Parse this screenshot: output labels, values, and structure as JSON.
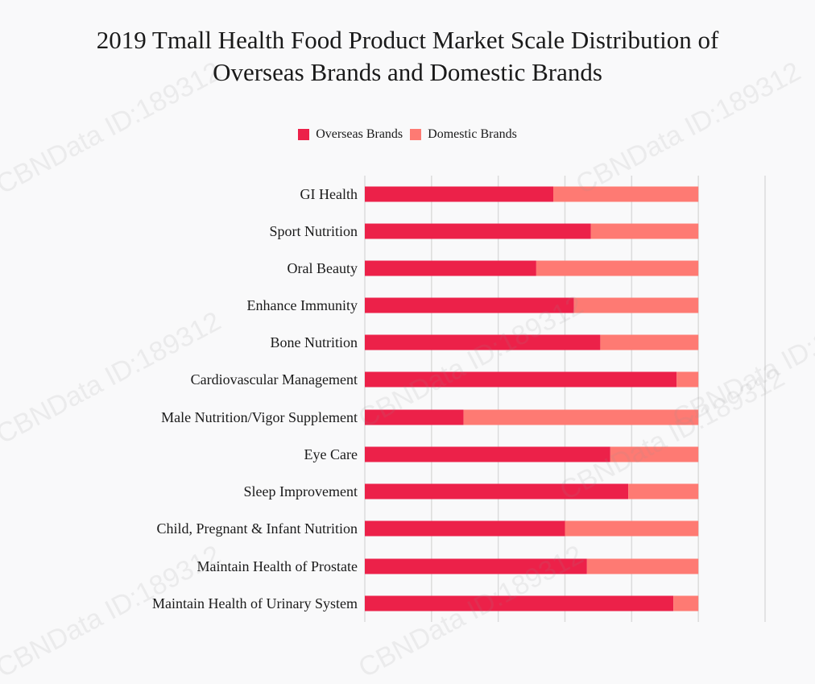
{
  "watermarks": [
    "CBNData ID:189312",
    "CBNData ID:189312",
    "CBNData ID:189312",
    "CBNData ID:189312",
    "CBNData ID:189312",
    "CBNData ID:189312",
    "CBNData ID:189312",
    "CBNData ID:189312"
  ],
  "chart_data": {
    "type": "bar",
    "orientation": "horizontal",
    "stacked": true,
    "title_lines": [
      "2019 Tmall Health Food Product Market Scale Distribution of",
      "Overseas Brands and Domestic Brands"
    ],
    "categories": [
      "GI Health",
      "Sport Nutrition",
      "Oral Beauty",
      "Enhance Immunity",
      "Bone Nutrition",
      "Cardiovascular Management",
      "Male Nutrition/Vigor Supplement",
      "Eye Care",
      "Sleep Improvement",
      "Child, Pregnant & Infant Nutrition",
      "Maintain Health of Prostate",
      "Maintain Health of Urinary System"
    ],
    "series": [
      {
        "name": "Overseas Brands",
        "color": "#ec2149",
        "values": [
          56.5,
          67.8,
          51.4,
          62.7,
          70.6,
          93.5,
          29.6,
          73.6,
          79.0,
          60.0,
          66.6,
          92.5
        ]
      },
      {
        "name": "Domestic Brands",
        "color": "#fe7a73",
        "values": [
          43.5,
          32.2,
          48.6,
          37.3,
          29.4,
          6.5,
          70.4,
          26.4,
          21.0,
          40.0,
          33.4,
          7.5
        ]
      }
    ],
    "xlim": [
      0,
      120
    ],
    "grid": true,
    "legend_position": "top-center"
  }
}
